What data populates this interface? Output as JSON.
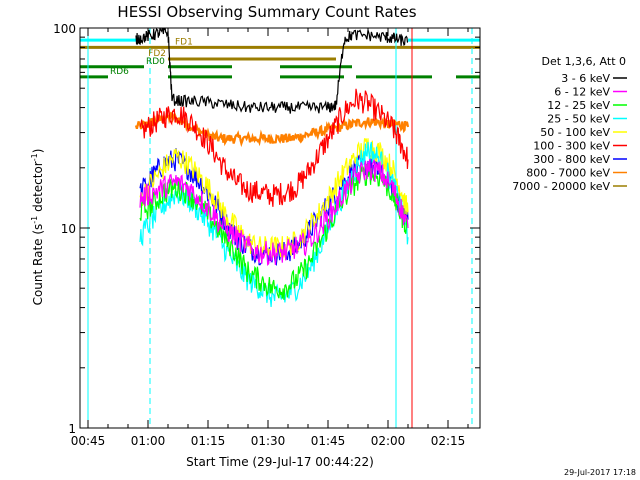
{
  "chart_data": {
    "type": "line",
    "title": "HESSI Observing Summary Count Rates",
    "xlabel": "Start Time (29-Jul-17 00:44:22)",
    "ylabel_main": "Count Rate (s",
    "ylabel_sup": "-1",
    "ylabel_tail": " detector",
    "ylabel_end": ")",
    "yscale": "log",
    "ylim": [
      1,
      100
    ],
    "xlim_minutes": [
      -2,
      98
    ],
    "x_ticks": [
      {
        "t": 0,
        "label": "00:45"
      },
      {
        "t": 15,
        "label": "01:00"
      },
      {
        "t": 30,
        "label": "01:15"
      },
      {
        "t": 45,
        "label": "01:30"
      },
      {
        "t": 60,
        "label": "01:45"
      },
      {
        "t": 75,
        "label": "02:00"
      },
      {
        "t": 90,
        "label": "02:15"
      }
    ],
    "y_ticks": [
      {
        "v": 1,
        "label": "1"
      },
      {
        "v": 10,
        "label": "10"
      },
      {
        "v": 100,
        "label": "100"
      }
    ],
    "legend": {
      "header": "Det 1,3,6, Att 0",
      "placement": "right"
    },
    "series": [
      {
        "name": "3 - 6 keV",
        "color": "#000000",
        "values": [
          [
            12,
            88
          ],
          [
            14,
            90
          ],
          [
            16,
            92
          ],
          [
            18,
            95
          ],
          [
            20,
            95
          ],
          [
            21,
            44
          ],
          [
            24,
            43
          ],
          [
            28,
            43
          ],
          [
            32,
            42
          ],
          [
            36,
            41
          ],
          [
            40,
            40
          ],
          [
            44,
            40
          ],
          [
            48,
            40
          ],
          [
            52,
            40
          ],
          [
            56,
            40
          ],
          [
            60,
            40
          ],
          [
            62,
            41
          ],
          [
            64,
            88
          ],
          [
            66,
            92
          ],
          [
            70,
            92
          ],
          [
            74,
            90
          ],
          [
            76,
            89
          ],
          [
            78,
            87
          ],
          [
            80,
            85
          ]
        ]
      },
      {
        "name": "6 - 12 keV",
        "color": "#ff00ff",
        "values": [
          [
            13,
            14
          ],
          [
            16,
            15
          ],
          [
            19,
            16
          ],
          [
            22,
            17
          ],
          [
            25,
            16
          ],
          [
            28,
            14
          ],
          [
            31,
            12
          ],
          [
            34,
            10
          ],
          [
            37,
            9
          ],
          [
            40,
            8
          ],
          [
            43,
            7.5
          ],
          [
            46,
            7.5
          ],
          [
            49,
            7.5
          ],
          [
            52,
            8
          ],
          [
            55,
            8.5
          ],
          [
            58,
            10
          ],
          [
            61,
            12
          ],
          [
            64,
            15
          ],
          [
            67,
            18
          ],
          [
            70,
            20
          ],
          [
            73,
            19
          ],
          [
            76,
            16
          ],
          [
            78,
            13
          ],
          [
            80,
            10
          ]
        ]
      },
      {
        "name": "12 - 25 keV",
        "color": "#00ff00",
        "values": [
          [
            13,
            12
          ],
          [
            16,
            13
          ],
          [
            19,
            15
          ],
          [
            22,
            16
          ],
          [
            25,
            15
          ],
          [
            28,
            13
          ],
          [
            31,
            11
          ],
          [
            34,
            9
          ],
          [
            37,
            7.5
          ],
          [
            40,
            6
          ],
          [
            43,
            5.5
          ],
          [
            46,
            5
          ],
          [
            49,
            5
          ],
          [
            52,
            5.5
          ],
          [
            55,
            6.5
          ],
          [
            58,
            8.5
          ],
          [
            61,
            11
          ],
          [
            64,
            14
          ],
          [
            67,
            17
          ],
          [
            70,
            19
          ],
          [
            73,
            18
          ],
          [
            76,
            15
          ],
          [
            78,
            12
          ],
          [
            80,
            10
          ]
        ]
      },
      {
        "name": "25 - 50 keV",
        "color": "#00ffff",
        "values": [
          [
            13,
            9
          ],
          [
            16,
            11
          ],
          [
            19,
            13
          ],
          [
            22,
            15
          ],
          [
            25,
            14
          ],
          [
            28,
            12
          ],
          [
            31,
            10
          ],
          [
            34,
            8
          ],
          [
            37,
            6.5
          ],
          [
            40,
            5.5
          ],
          [
            43,
            5
          ],
          [
            46,
            4.5
          ],
          [
            49,
            4.5
          ],
          [
            52,
            5
          ],
          [
            55,
            6
          ],
          [
            58,
            8
          ],
          [
            61,
            11
          ],
          [
            64,
            15
          ],
          [
            67,
            20
          ],
          [
            70,
            25
          ],
          [
            73,
            22
          ],
          [
            76,
            17
          ],
          [
            78,
            13
          ],
          [
            80,
            9
          ]
        ]
      },
      {
        "name": "50 - 100 keV",
        "color": "#ffff00",
        "values": [
          [
            13,
            14
          ],
          [
            16,
            17
          ],
          [
            19,
            20
          ],
          [
            22,
            23
          ],
          [
            25,
            21
          ],
          [
            28,
            18
          ],
          [
            31,
            15
          ],
          [
            34,
            12
          ],
          [
            37,
            10
          ],
          [
            40,
            8.5
          ],
          [
            43,
            8
          ],
          [
            46,
            8
          ],
          [
            49,
            8
          ],
          [
            52,
            8.5
          ],
          [
            55,
            10
          ],
          [
            58,
            12
          ],
          [
            61,
            15
          ],
          [
            64,
            19
          ],
          [
            67,
            23
          ],
          [
            70,
            26
          ],
          [
            73,
            24
          ],
          [
            76,
            20
          ],
          [
            78,
            16
          ],
          [
            80,
            12
          ]
        ]
      },
      {
        "name": "100 - 300 keV",
        "color": "#ff0000",
        "values": [
          [
            13,
            30
          ],
          [
            16,
            33
          ],
          [
            19,
            36
          ],
          [
            22,
            38
          ],
          [
            25,
            35
          ],
          [
            28,
            30
          ],
          [
            31,
            25
          ],
          [
            34,
            20
          ],
          [
            37,
            17
          ],
          [
            40,
            15.5
          ],
          [
            43,
            15
          ],
          [
            46,
            14.5
          ],
          [
            49,
            15
          ],
          [
            52,
            16
          ],
          [
            55,
            19
          ],
          [
            58,
            24
          ],
          [
            61,
            30
          ],
          [
            64,
            38
          ],
          [
            67,
            44
          ],
          [
            70,
            42
          ],
          [
            73,
            37
          ],
          [
            76,
            32
          ],
          [
            78,
            27
          ],
          [
            80,
            22
          ]
        ]
      },
      {
        "name": "300 - 800 keV",
        "color": "#0000ff",
        "values": [
          [
            13,
            15
          ],
          [
            16,
            18
          ],
          [
            19,
            21
          ],
          [
            22,
            22
          ],
          [
            25,
            20
          ],
          [
            28,
            17
          ],
          [
            31,
            14
          ],
          [
            34,
            11
          ],
          [
            37,
            9
          ],
          [
            40,
            8
          ],
          [
            43,
            7.5
          ],
          [
            46,
            7.5
          ],
          [
            49,
            7.5
          ],
          [
            52,
            8
          ],
          [
            55,
            9.5
          ],
          [
            58,
            11.5
          ],
          [
            61,
            14
          ],
          [
            64,
            17
          ],
          [
            67,
            20
          ],
          [
            70,
            21
          ],
          [
            73,
            19
          ],
          [
            76,
            16
          ],
          [
            78,
            13
          ],
          [
            80,
            11
          ]
        ]
      },
      {
        "name": "800 - 7000 keV",
        "color": "#ff8000",
        "values": [
          [
            12,
            32
          ],
          [
            15,
            33
          ],
          [
            18,
            35
          ],
          [
            21,
            36
          ],
          [
            24,
            34
          ],
          [
            27,
            31
          ],
          [
            30,
            29
          ],
          [
            33,
            28
          ],
          [
            36,
            28
          ],
          [
            39,
            28
          ],
          [
            42,
            28
          ],
          [
            45,
            28
          ],
          [
            48,
            28
          ],
          [
            51,
            28
          ],
          [
            54,
            29
          ],
          [
            57,
            30
          ],
          [
            60,
            31
          ],
          [
            63,
            32
          ],
          [
            66,
            33
          ],
          [
            69,
            34
          ],
          [
            72,
            34
          ],
          [
            75,
            33
          ],
          [
            78,
            33
          ],
          [
            80,
            32
          ]
        ]
      },
      {
        "name": "7000 - 20000 keV",
        "color": "#9b7d00",
        "values": []
      }
    ],
    "annotations": {
      "fd1": {
        "label": "FD1",
        "color": "#9b7d00",
        "level": 80,
        "spans": [
          [
            -2,
            98
          ]
        ]
      },
      "fd2": {
        "label": "FD2",
        "color": "#9b7d00",
        "level": 70,
        "spans": [
          [
            20,
            62
          ]
        ]
      },
      "rd0": {
        "label": "RD0",
        "color": "#008000",
        "level": 64,
        "spans": [
          [
            -2,
            14
          ],
          [
            20,
            36
          ],
          [
            48,
            66
          ]
        ]
      },
      "rd6": {
        "label": "RD6",
        "color": "#008000",
        "level": 57,
        "spans": [
          [
            -2,
            5
          ],
          [
            20,
            36
          ],
          [
            48,
            64
          ],
          [
            67,
            86
          ],
          [
            92,
            98
          ]
        ]
      }
    },
    "saa_cyan_solid": {
      "color": "#00ffff",
      "bar_level": 87,
      "spans": [
        [
          -2,
          12
        ],
        [
          80,
          98
        ]
      ]
    },
    "vertical_markers": [
      {
        "t": 0,
        "color": "#00ffff",
        "style": "solid"
      },
      {
        "t": 15.5,
        "color": "#00ffff",
        "style": "dashed"
      },
      {
        "t": 77,
        "color": "#00ffff",
        "style": "solid"
      },
      {
        "t": 81,
        "color": "#ff0000",
        "style": "solid"
      },
      {
        "t": 96,
        "color": "#00ffff",
        "style": "dashed"
      }
    ]
  },
  "footer": {
    "timestamp": "29-Jul-2017 17:18"
  }
}
